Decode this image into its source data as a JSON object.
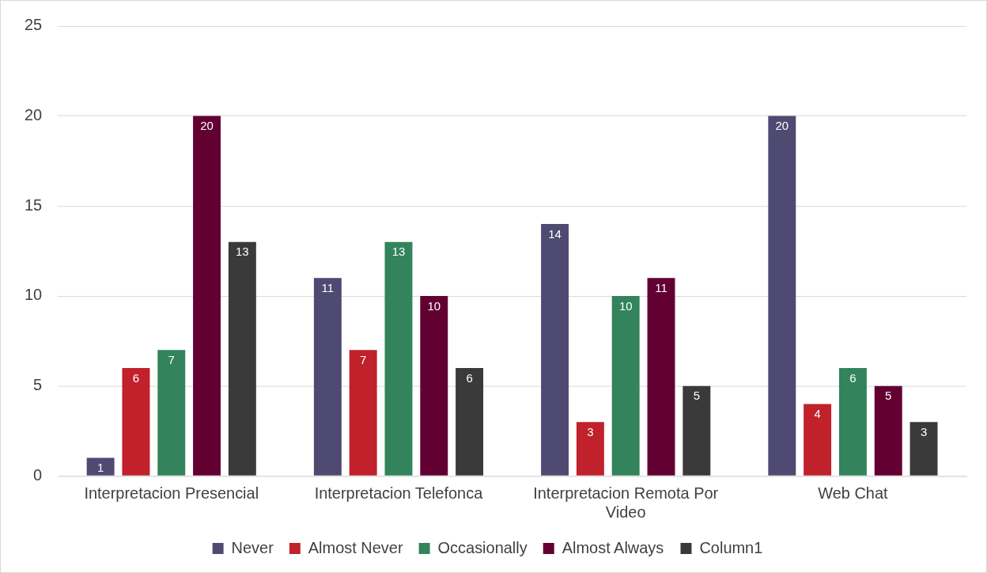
{
  "chart_data": {
    "type": "bar",
    "categories": [
      "Interpretacion Presencial",
      "Interpretacion Telefonca",
      "Interpretacion Remota Por Video",
      "Web Chat"
    ],
    "series": [
      {
        "name": "Never",
        "color": "#4f4a72",
        "values": [
          1,
          11,
          14,
          20
        ]
      },
      {
        "name": "Almost Never",
        "color": "#c0212b",
        "values": [
          6,
          7,
          3,
          4
        ]
      },
      {
        "name": "Occasionally",
        "color": "#33835c",
        "values": [
          7,
          13,
          10,
          6
        ]
      },
      {
        "name": "Almost Always",
        "color": "#620032",
        "values": [
          20,
          10,
          11,
          5
        ]
      },
      {
        "name": "Column1",
        "color": "#3a3a3a",
        "values": [
          13,
          6,
          5,
          3
        ]
      }
    ],
    "ylim": [
      0,
      25
    ],
    "yticks": [
      0,
      5,
      10,
      15,
      20,
      25
    ],
    "grid": "y",
    "legend": "bottom",
    "data_labels": true
  }
}
